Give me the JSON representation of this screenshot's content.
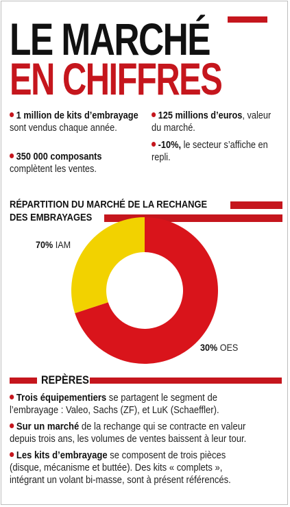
{
  "title": {
    "line1": "LE MARCHÉ",
    "line2": "EN CHIFFRES"
  },
  "facts": [
    {
      "bold": "1 million de kits d’embrayage",
      "text": " sont vendus chaque année."
    },
    {
      "bold": "350 000 composants",
      "text": " complètent les ventes."
    },
    {
      "bold": "125 millions d’euros",
      "text": ", valeur du marché."
    },
    {
      "bold": "-10%,",
      "text": " le secteur s’affiche en repli."
    }
  ],
  "section_title": {
    "line1": "RÉPARTITION DU MARCHÉ DE LA RECHANGE",
    "line2": "DES EMBRAYAGES"
  },
  "chart_data": {
    "type": "pie",
    "title": "RÉPARTITION DU MARCHÉ DE LA RECHANGE DES EMBRAYAGES",
    "slices": [
      {
        "name": "IAM",
        "value": 70,
        "value_label": "70%",
        "color": "#d9141b"
      },
      {
        "name": "OES",
        "value": 30,
        "value_label": "30%",
        "color": "#f2d200"
      }
    ],
    "donut": true
  },
  "reperes": {
    "title": "REPÈRES",
    "items": [
      {
        "bold": "Trois équipementiers",
        "text": " se partagent le segment de l’embrayage : Valeo, Sachs (ZF), et LuK (Schaeffler)."
      },
      {
        "bold": "Sur un marché",
        "text": " de la rechange qui se contracte en valeur depuis trois ans, les volumes de ventes baissent à leur tour."
      },
      {
        "bold": "Les kits d’embrayage",
        "text": " se composent de trois pièces (disque, mécanisme et buttée). Des kits « complets », intégrant un volant bi-masse, sont à présent référencés."
      }
    ]
  },
  "colors": {
    "accent": "#c5161d",
    "red_slice": "#d9141b",
    "yellow_slice": "#f2d200"
  }
}
